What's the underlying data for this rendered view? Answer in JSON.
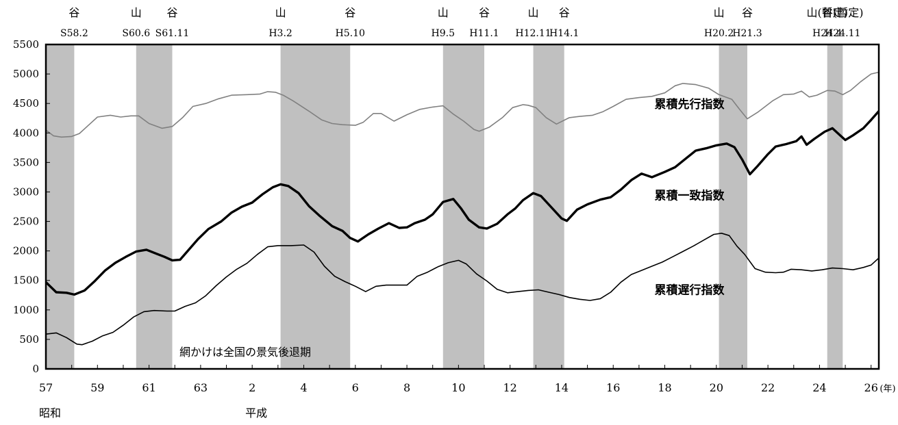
{
  "chart_data": {
    "type": "line",
    "x_start": 1982,
    "x_end": 2014.3,
    "ylim": [
      0,
      5500
    ],
    "y_ticks": [
      0,
      500,
      1000,
      1500,
      2000,
      2500,
      3000,
      3500,
      4000,
      4500,
      5000,
      5500
    ],
    "x_ticks": [
      {
        "value": 1982,
        "label": "57"
      },
      {
        "value": 1984,
        "label": "59"
      },
      {
        "value": 1986,
        "label": "61"
      },
      {
        "value": 1988,
        "label": "63"
      },
      {
        "value": 1990,
        "label": "2"
      },
      {
        "value": 1992,
        "label": "4"
      },
      {
        "value": 1994,
        "label": "6"
      },
      {
        "value": 1996,
        "label": "8"
      },
      {
        "value": 1998,
        "label": "10"
      },
      {
        "value": 2000,
        "label": "12"
      },
      {
        "value": 2002,
        "label": "14"
      },
      {
        "value": 2004,
        "label": "16"
      },
      {
        "value": 2006,
        "label": "18"
      },
      {
        "value": 2008,
        "label": "20"
      },
      {
        "value": 2010,
        "label": "22"
      },
      {
        "value": 2012,
        "label": "24"
      },
      {
        "value": 2014,
        "label": "26"
      }
    ],
    "x_unit": "(年)",
    "era_labels": [
      {
        "x": 1982,
        "text": "昭和"
      },
      {
        "x": 1990,
        "text": "平成"
      }
    ],
    "recession_bands": [
      {
        "from": 1982.0,
        "to": 1983.1
      },
      {
        "from": 1985.5,
        "to": 1986.9
      },
      {
        "from": 1991.1,
        "to": 1993.8
      },
      {
        "from": 1997.4,
        "to": 1999.0
      },
      {
        "from": 2000.9,
        "to": 2002.1
      },
      {
        "from": 2008.1,
        "to": 2009.2
      },
      {
        "from": 2012.3,
        "to": 2012.9
      }
    ],
    "turning_points": [
      {
        "x": 1983.1,
        "mark": "谷",
        "date": "S58.2"
      },
      {
        "x": 1985.5,
        "mark": "山",
        "date": "S60.6"
      },
      {
        "x": 1986.9,
        "mark": "谷",
        "date": "S61.11"
      },
      {
        "x": 1991.1,
        "mark": "山",
        "date": "H3.2"
      },
      {
        "x": 1993.8,
        "mark": "谷",
        "date": "H5.10"
      },
      {
        "x": 1997.4,
        "mark": "山",
        "date": "H9.5"
      },
      {
        "x": 1999.0,
        "mark": "谷",
        "date": "H11.1"
      },
      {
        "x": 2000.9,
        "mark": "山",
        "date": "H12.11"
      },
      {
        "x": 2002.1,
        "mark": "谷",
        "date": "H14.1"
      },
      {
        "x": 2008.1,
        "mark": "山",
        "date": "H20.2"
      },
      {
        "x": 2009.2,
        "mark": "谷",
        "date": "H21.3"
      },
      {
        "x": 2012.3,
        "mark": "山(暫定)",
        "date": "H24.4"
      },
      {
        "x": 2012.9,
        "mark": "谷(暫定)",
        "date": "H24.11"
      }
    ],
    "series": [
      {
        "name": "累積先行指数",
        "color": "#808080",
        "width": 1.6,
        "label_x": 2005.6,
        "label_y": 4420,
        "points": [
          [
            1982,
            4050
          ],
          [
            1982.3,
            3950
          ],
          [
            1982.6,
            3930
          ],
          [
            1983,
            3940
          ],
          [
            1983.3,
            3990
          ],
          [
            1983.7,
            4150
          ],
          [
            1984,
            4270
          ],
          [
            1984.5,
            4300
          ],
          [
            1984.9,
            4270
          ],
          [
            1985.3,
            4290
          ],
          [
            1985.6,
            4290
          ],
          [
            1986,
            4160
          ],
          [
            1986.5,
            4080
          ],
          [
            1986.9,
            4110
          ],
          [
            1987.3,
            4260
          ],
          [
            1987.7,
            4450
          ],
          [
            1988.2,
            4500
          ],
          [
            1988.7,
            4580
          ],
          [
            1989.2,
            4640
          ],
          [
            1989.8,
            4650
          ],
          [
            1990.3,
            4660
          ],
          [
            1990.6,
            4700
          ],
          [
            1990.9,
            4690
          ],
          [
            1991.2,
            4640
          ],
          [
            1991.6,
            4540
          ],
          [
            1992.2,
            4370
          ],
          [
            1992.7,
            4220
          ],
          [
            1993.1,
            4160
          ],
          [
            1993.5,
            4140
          ],
          [
            1994,
            4130
          ],
          [
            1994.3,
            4180
          ],
          [
            1994.7,
            4330
          ],
          [
            1995,
            4330
          ],
          [
            1995.5,
            4200
          ],
          [
            1996,
            4310
          ],
          [
            1996.5,
            4400
          ],
          [
            1997,
            4440
          ],
          [
            1997.4,
            4460
          ],
          [
            1997.8,
            4320
          ],
          [
            1998.2,
            4200
          ],
          [
            1998.6,
            4060
          ],
          [
            1998.8,
            4030
          ],
          [
            1999.2,
            4100
          ],
          [
            1999.7,
            4260
          ],
          [
            2000.1,
            4430
          ],
          [
            2000.5,
            4480
          ],
          [
            2000.7,
            4470
          ],
          [
            2001,
            4430
          ],
          [
            2001.4,
            4260
          ],
          [
            2001.8,
            4150
          ],
          [
            2002.3,
            4260
          ],
          [
            2002.7,
            4280
          ],
          [
            2003.2,
            4300
          ],
          [
            2003.6,
            4360
          ],
          [
            2004,
            4450
          ],
          [
            2004.5,
            4570
          ],
          [
            2005,
            4600
          ],
          [
            2005.5,
            4620
          ],
          [
            2006,
            4680
          ],
          [
            2006.4,
            4800
          ],
          [
            2006.7,
            4840
          ],
          [
            2007.2,
            4820
          ],
          [
            2007.7,
            4760
          ],
          [
            2008.1,
            4650
          ],
          [
            2008.6,
            4570
          ],
          [
            2008.9,
            4400
          ],
          [
            2009.2,
            4240
          ],
          [
            2009.6,
            4350
          ],
          [
            2010.2,
            4550
          ],
          [
            2010.6,
            4650
          ],
          [
            2011,
            4660
          ],
          [
            2011.3,
            4710
          ],
          [
            2011.6,
            4610
          ],
          [
            2011.9,
            4640
          ],
          [
            2012.3,
            4720
          ],
          [
            2012.6,
            4710
          ],
          [
            2012.9,
            4650
          ],
          [
            2013.2,
            4720
          ],
          [
            2013.6,
            4870
          ],
          [
            2014,
            5000
          ],
          [
            2014.3,
            5030
          ]
        ]
      },
      {
        "name": "累積一致指数",
        "color": "#000000",
        "width": 3.4,
        "label_x": 2005.6,
        "label_y": 2870,
        "points": [
          [
            1982,
            1470
          ],
          [
            1982.4,
            1300
          ],
          [
            1982.8,
            1290
          ],
          [
            1983.1,
            1260
          ],
          [
            1983.5,
            1330
          ],
          [
            1983.9,
            1490
          ],
          [
            1984.3,
            1670
          ],
          [
            1984.7,
            1800
          ],
          [
            1985.1,
            1900
          ],
          [
            1985.5,
            1990
          ],
          [
            1985.9,
            2020
          ],
          [
            1986.3,
            1950
          ],
          [
            1986.6,
            1900
          ],
          [
            1986.9,
            1840
          ],
          [
            1987.2,
            1850
          ],
          [
            1987.5,
            2000
          ],
          [
            1987.9,
            2200
          ],
          [
            1988.3,
            2370
          ],
          [
            1988.8,
            2500
          ],
          [
            1989.2,
            2650
          ],
          [
            1989.6,
            2750
          ],
          [
            1990,
            2820
          ],
          [
            1990.4,
            2960
          ],
          [
            1990.8,
            3080
          ],
          [
            1991.1,
            3130
          ],
          [
            1991.4,
            3100
          ],
          [
            1991.8,
            2980
          ],
          [
            1992.2,
            2760
          ],
          [
            1992.6,
            2600
          ],
          [
            1993.1,
            2420
          ],
          [
            1993.5,
            2340
          ],
          [
            1993.8,
            2220
          ],
          [
            1994.1,
            2160
          ],
          [
            1994.5,
            2280
          ],
          [
            1994.9,
            2380
          ],
          [
            1995.3,
            2470
          ],
          [
            1995.7,
            2390
          ],
          [
            1996,
            2400
          ],
          [
            1996.3,
            2470
          ],
          [
            1996.7,
            2530
          ],
          [
            1997,
            2620
          ],
          [
            1997.4,
            2830
          ],
          [
            1997.8,
            2880
          ],
          [
            1998.1,
            2720
          ],
          [
            1998.4,
            2530
          ],
          [
            1998.8,
            2400
          ],
          [
            1999.1,
            2380
          ],
          [
            1999.5,
            2460
          ],
          [
            1999.9,
            2620
          ],
          [
            2000.2,
            2720
          ],
          [
            2000.5,
            2860
          ],
          [
            2000.9,
            2980
          ],
          [
            2001.2,
            2930
          ],
          [
            2001.6,
            2740
          ],
          [
            2002,
            2550
          ],
          [
            2002.2,
            2510
          ],
          [
            2002.6,
            2700
          ],
          [
            2003,
            2790
          ],
          [
            2003.5,
            2870
          ],
          [
            2003.9,
            2910
          ],
          [
            2004.3,
            3040
          ],
          [
            2004.7,
            3200
          ],
          [
            2005.1,
            3310
          ],
          [
            2005.5,
            3250
          ],
          [
            2006,
            3340
          ],
          [
            2006.4,
            3420
          ],
          [
            2006.8,
            3560
          ],
          [
            2007.2,
            3700
          ],
          [
            2007.6,
            3740
          ],
          [
            2008,
            3790
          ],
          [
            2008.4,
            3820
          ],
          [
            2008.7,
            3760
          ],
          [
            2009,
            3550
          ],
          [
            2009.3,
            3300
          ],
          [
            2009.6,
            3440
          ],
          [
            2010,
            3640
          ],
          [
            2010.3,
            3770
          ],
          [
            2010.7,
            3810
          ],
          [
            2011.1,
            3860
          ],
          [
            2011.3,
            3940
          ],
          [
            2011.5,
            3800
          ],
          [
            2011.8,
            3900
          ],
          [
            2012.2,
            4020
          ],
          [
            2012.5,
            4080
          ],
          [
            2012.8,
            3960
          ],
          [
            2013,
            3880
          ],
          [
            2013.3,
            3960
          ],
          [
            2013.7,
            4080
          ],
          [
            2014,
            4220
          ],
          [
            2014.3,
            4370
          ]
        ]
      },
      {
        "name": "累積遅行指数",
        "color": "#000000",
        "width": 1.6,
        "label_x": 2005.6,
        "label_y": 1270,
        "points": [
          [
            1982,
            590
          ],
          [
            1982.4,
            610
          ],
          [
            1982.8,
            530
          ],
          [
            1983.2,
            420
          ],
          [
            1983.4,
            410
          ],
          [
            1983.8,
            470
          ],
          [
            1984.2,
            560
          ],
          [
            1984.6,
            620
          ],
          [
            1985,
            740
          ],
          [
            1985.4,
            880
          ],
          [
            1985.8,
            970
          ],
          [
            1986.2,
            990
          ],
          [
            1986.7,
            980
          ],
          [
            1987,
            980
          ],
          [
            1987.4,
            1060
          ],
          [
            1987.8,
            1120
          ],
          [
            1988.2,
            1240
          ],
          [
            1988.6,
            1410
          ],
          [
            1989,
            1560
          ],
          [
            1989.4,
            1690
          ],
          [
            1989.8,
            1790
          ],
          [
            1990.2,
            1940
          ],
          [
            1990.6,
            2070
          ],
          [
            1991,
            2090
          ],
          [
            1991.5,
            2090
          ],
          [
            1992,
            2100
          ],
          [
            1992.4,
            1980
          ],
          [
            1992.8,
            1740
          ],
          [
            1993.2,
            1570
          ],
          [
            1993.6,
            1480
          ],
          [
            1994,
            1400
          ],
          [
            1994.4,
            1310
          ],
          [
            1994.8,
            1400
          ],
          [
            1995.2,
            1420
          ],
          [
            1995.6,
            1420
          ],
          [
            1996,
            1420
          ],
          [
            1996.4,
            1570
          ],
          [
            1996.8,
            1640
          ],
          [
            1997.2,
            1730
          ],
          [
            1997.6,
            1800
          ],
          [
            1998,
            1840
          ],
          [
            1998.3,
            1780
          ],
          [
            1998.7,
            1610
          ],
          [
            1999.1,
            1490
          ],
          [
            1999.5,
            1350
          ],
          [
            1999.9,
            1290
          ],
          [
            2000.3,
            1310
          ],
          [
            2000.7,
            1330
          ],
          [
            2001.1,
            1340
          ],
          [
            2001.5,
            1300
          ],
          [
            2001.9,
            1260
          ],
          [
            2002.3,
            1210
          ],
          [
            2002.7,
            1180
          ],
          [
            2003.1,
            1160
          ],
          [
            2003.5,
            1190
          ],
          [
            2003.9,
            1300
          ],
          [
            2004.3,
            1470
          ],
          [
            2004.7,
            1600
          ],
          [
            2005.1,
            1670
          ],
          [
            2005.5,
            1740
          ],
          [
            2005.9,
            1810
          ],
          [
            2006.3,
            1900
          ],
          [
            2006.7,
            1990
          ],
          [
            2007.1,
            2080
          ],
          [
            2007.5,
            2180
          ],
          [
            2007.9,
            2280
          ],
          [
            2008.2,
            2300
          ],
          [
            2008.5,
            2260
          ],
          [
            2008.8,
            2080
          ],
          [
            2009.1,
            1940
          ],
          [
            2009.5,
            1700
          ],
          [
            2009.9,
            1640
          ],
          [
            2010.3,
            1630
          ],
          [
            2010.6,
            1640
          ],
          [
            2010.9,
            1690
          ],
          [
            2011.3,
            1680
          ],
          [
            2011.7,
            1660
          ],
          [
            2012.1,
            1680
          ],
          [
            2012.5,
            1710
          ],
          [
            2012.9,
            1700
          ],
          [
            2013.3,
            1680
          ],
          [
            2013.7,
            1720
          ],
          [
            2014,
            1760
          ],
          [
            2014.3,
            1880
          ]
        ]
      }
    ],
    "annotation": "網かけは全国の景気後退期"
  }
}
